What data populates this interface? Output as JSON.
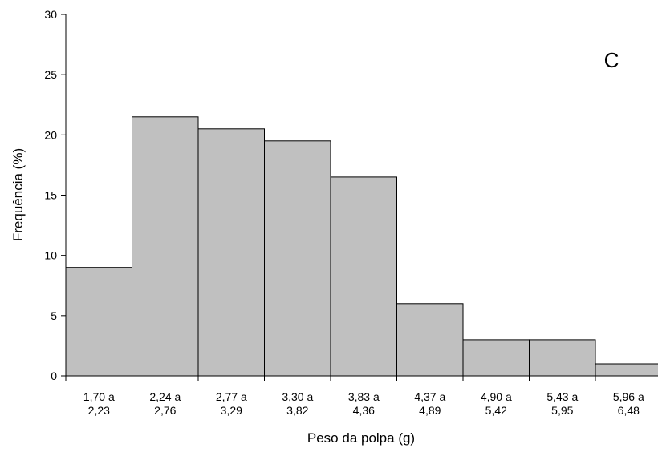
{
  "chart_data": {
    "type": "bar",
    "panel_label": "C",
    "xlabel": "Peso da polpa (g)",
    "ylabel": "Frequência (%)",
    "ylim": [
      0,
      30
    ],
    "yticks": [
      "0",
      "5",
      "10",
      "15",
      "20",
      "25",
      "30"
    ],
    "categories": [
      [
        "1,70 a",
        "2,23"
      ],
      [
        "2,24 a",
        "2,76"
      ],
      [
        "2,77 a",
        "3,29"
      ],
      [
        "3,30 a",
        "3,82"
      ],
      [
        "3,83 a",
        "4,36"
      ],
      [
        "4,37 a",
        "4,89"
      ],
      [
        "4,90 a",
        "5,42"
      ],
      [
        "5,43 a",
        "5,95"
      ],
      [
        "5,96 a",
        "6,48"
      ]
    ],
    "values": [
      9,
      21.5,
      20.5,
      19.5,
      16.5,
      6,
      3,
      3,
      1
    ],
    "bar_color": "#c0c0c0",
    "grid": false
  }
}
